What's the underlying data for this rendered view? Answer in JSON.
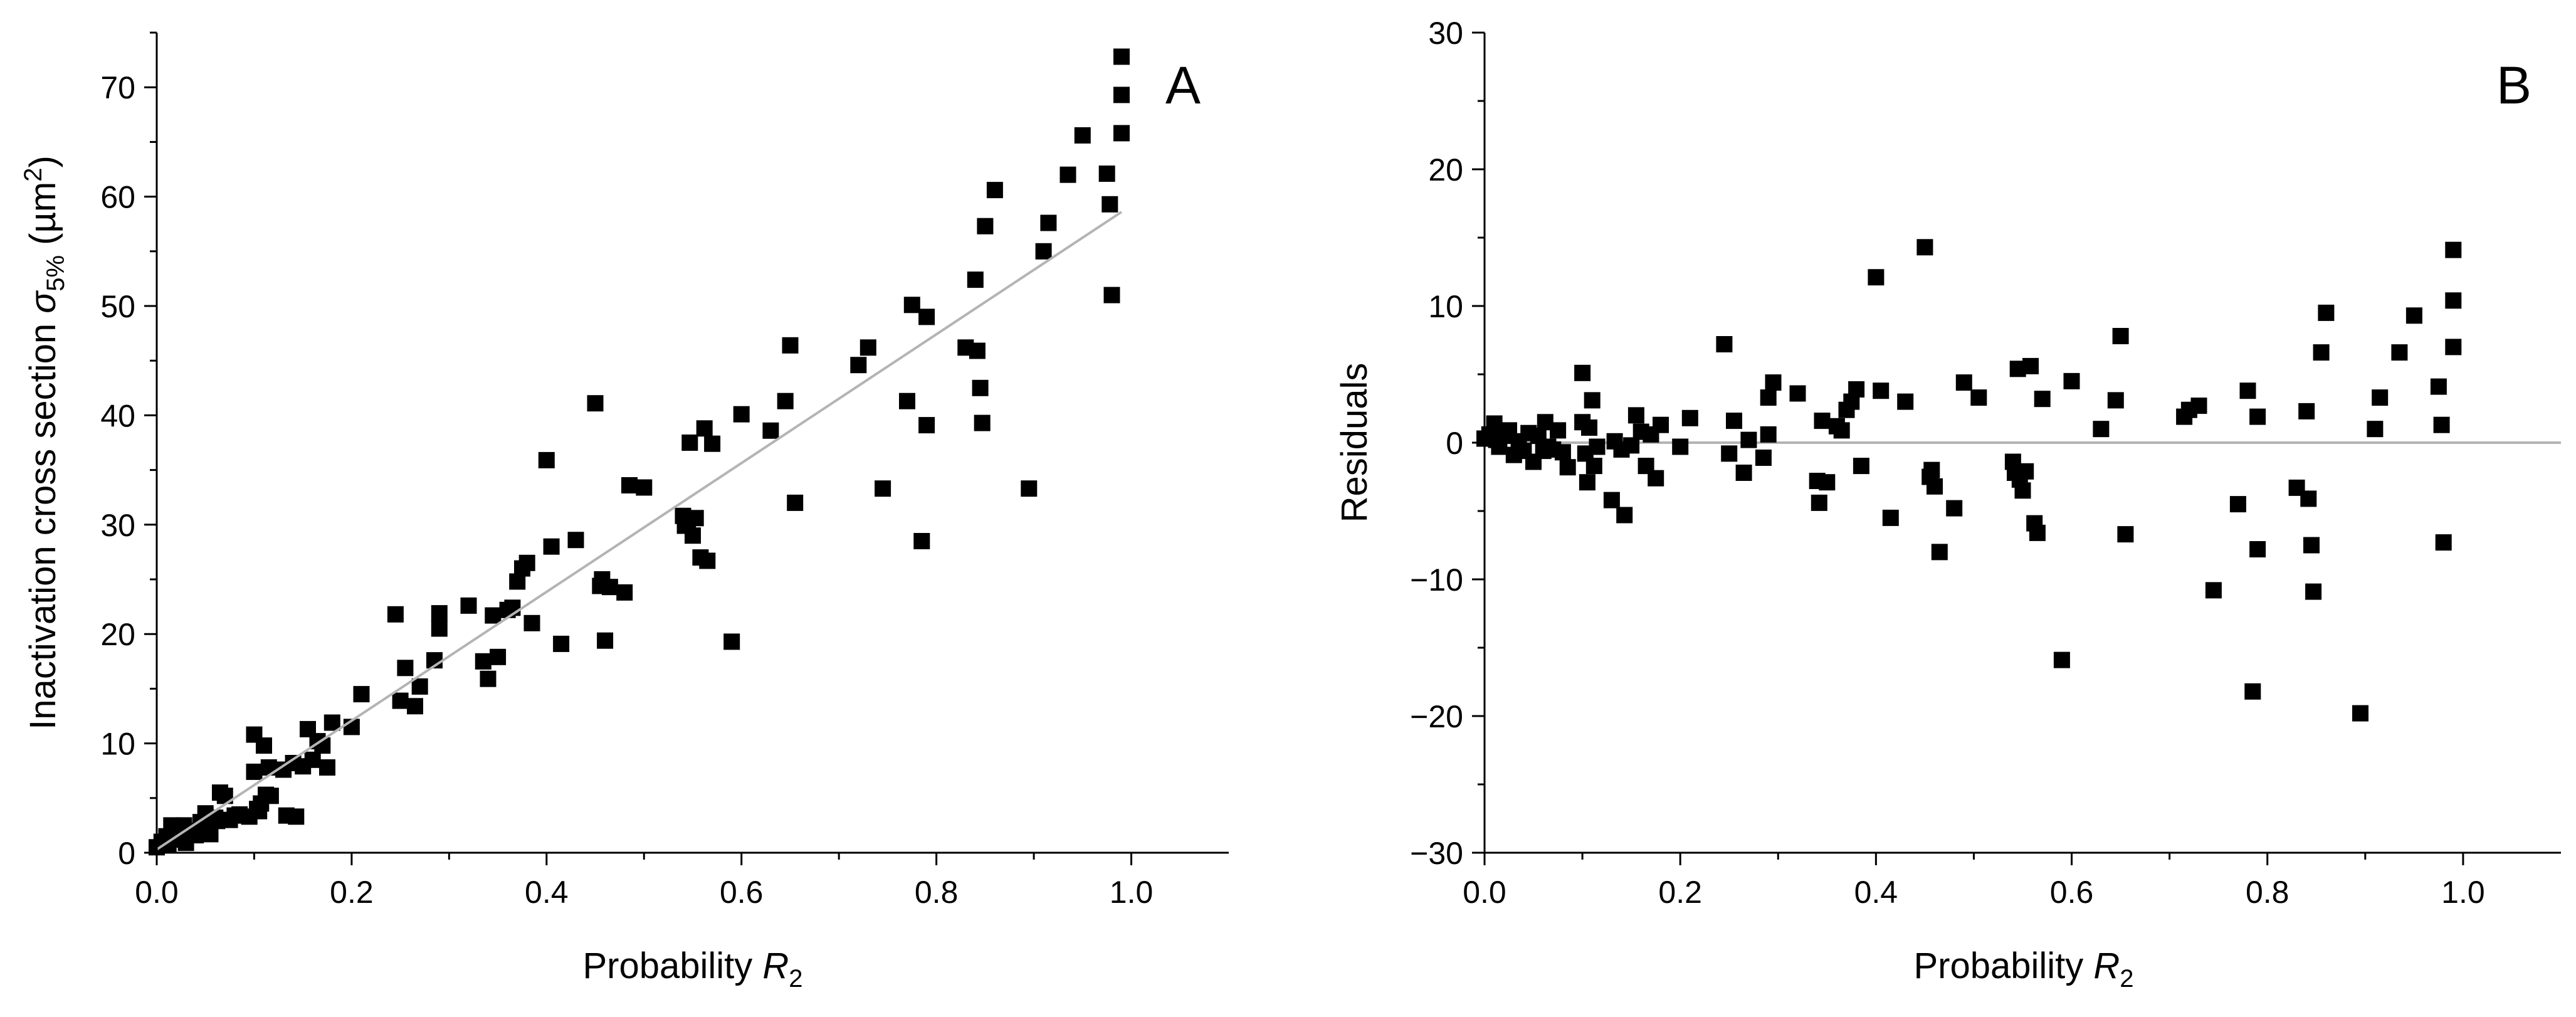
{
  "chart_data": [
    {
      "panel": "A",
      "type": "scatter",
      "xlabel": "Probability R2",
      "xlabel_parts": {
        "main": "Probability ",
        "var": "R",
        "sub": "2"
      },
      "ylabel": "Inactivation cross section σ5% (µm2)",
      "ylabel_parts": {
        "main": "Inactivation cross section ",
        "sym": "σ",
        "sub": "5%",
        "unit_open": " (µm",
        "sup": "2",
        "unit_close": ")"
      },
      "xlim": [
        0,
        1.1
      ],
      "ylim": [
        0,
        75
      ],
      "x_ticks": [
        0,
        0.2,
        0.4,
        0.6,
        0.8,
        1.0
      ],
      "x_tick_labels": [
        "0.0",
        "0.2",
        "0.4",
        "0.6",
        "0.8",
        "1.0"
      ],
      "y_ticks": [
        0,
        10,
        20,
        30,
        40,
        50,
        60,
        70
      ],
      "y_tick_labels": [
        "0",
        "10",
        "20",
        "30",
        "40",
        "50",
        "60",
        "70"
      ],
      "grid": false,
      "fit_line": {
        "x": [
          0,
          0.99
        ],
        "y": [
          0.3,
          58.6
        ]
      },
      "series": [
        {
          "points": [
            [
              0.0,
              0.5
            ],
            [
              0.005,
              1.0
            ],
            [
              0.01,
              1.5
            ],
            [
              0.012,
              0.8
            ],
            [
              0.015,
              2.5
            ],
            [
              0.02,
              1.2
            ],
            [
              0.025,
              1.8
            ],
            [
              0.028,
              2.5
            ],
            [
              0.03,
              0.9
            ],
            [
              0.035,
              2.0
            ],
            [
              0.04,
              1.6
            ],
            [
              0.045,
              2.8
            ],
            [
              0.05,
              3.6
            ],
            [
              0.052,
              2.2
            ],
            [
              0.055,
              1.7
            ],
            [
              0.06,
              3.2
            ],
            [
              0.062,
              2.9
            ],
            [
              0.065,
              5.5
            ],
            [
              0.07,
              5.2
            ],
            [
              0.075,
              3.0
            ],
            [
              0.08,
              3.4
            ],
            [
              0.085,
              3.5
            ],
            [
              0.095,
              3.3
            ],
            [
              0.1,
              10.8
            ],
            [
              0.1,
              7.4
            ],
            [
              0.103,
              4.0
            ],
            [
              0.105,
              3.8
            ],
            [
              0.107,
              4.5
            ],
            [
              0.11,
              9.8
            ],
            [
              0.112,
              5.3
            ],
            [
              0.115,
              7.8
            ],
            [
              0.117,
              5.2
            ],
            [
              0.13,
              7.6
            ],
            [
              0.133,
              3.4
            ],
            [
              0.14,
              8.2
            ],
            [
              0.143,
              3.3
            ],
            [
              0.15,
              7.9
            ],
            [
              0.155,
              11.3
            ],
            [
              0.16,
              8.5
            ],
            [
              0.165,
              10.2
            ],
            [
              0.17,
              9.8
            ],
            [
              0.175,
              7.8
            ],
            [
              0.18,
              11.9
            ],
            [
              0.2,
              11.5
            ],
            [
              0.21,
              14.5
            ],
            [
              0.245,
              21.8
            ],
            [
              0.25,
              13.9
            ],
            [
              0.255,
              16.9
            ],
            [
              0.265,
              13.4
            ],
            [
              0.27,
              15.2
            ],
            [
              0.285,
              17.6
            ],
            [
              0.29,
              21.9
            ],
            [
              0.29,
              20.5
            ],
            [
              0.32,
              22.6
            ],
            [
              0.335,
              17.5
            ],
            [
              0.34,
              15.9
            ],
            [
              0.345,
              21.7
            ],
            [
              0.35,
              17.9
            ],
            [
              0.36,
              22.2
            ],
            [
              0.365,
              22.4
            ],
            [
              0.37,
              24.8
            ],
            [
              0.375,
              26.0
            ],
            [
              0.38,
              26.5
            ],
            [
              0.385,
              21.0
            ],
            [
              0.4,
              35.9
            ],
            [
              0.405,
              28.0
            ],
            [
              0.415,
              19.1
            ],
            [
              0.43,
              28.6
            ],
            [
              0.45,
              41.1
            ],
            [
              0.455,
              24.4
            ],
            [
              0.457,
              25.0
            ],
            [
              0.46,
              19.4
            ],
            [
              0.465,
              24.3
            ],
            [
              0.48,
              23.8
            ],
            [
              0.485,
              33.6
            ],
            [
              0.5,
              33.4
            ],
            [
              0.54,
              30.8
            ],
            [
              0.542,
              29.9
            ],
            [
              0.545,
              30.4
            ],
            [
              0.547,
              37.5
            ],
            [
              0.55,
              29.0
            ],
            [
              0.553,
              30.6
            ],
            [
              0.558,
              27.0
            ],
            [
              0.562,
              38.8
            ],
            [
              0.565,
              26.7
            ],
            [
              0.57,
              37.4
            ],
            [
              0.59,
              19.3
            ],
            [
              0.6,
              40.1
            ],
            [
              0.63,
              38.6
            ],
            [
              0.645,
              41.3
            ],
            [
              0.65,
              46.4
            ],
            [
              0.655,
              32.0
            ],
            [
              0.72,
              44.6
            ],
            [
              0.73,
              46.2
            ],
            [
              0.745,
              33.3
            ],
            [
              0.77,
              41.3
            ],
            [
              0.775,
              50.1
            ],
            [
              0.785,
              28.5
            ],
            [
              0.79,
              49.0
            ],
            [
              0.79,
              39.1
            ],
            [
              0.83,
              46.2
            ],
            [
              0.84,
              52.4
            ],
            [
              0.842,
              45.9
            ],
            [
              0.845,
              42.5
            ],
            [
              0.847,
              39.3
            ],
            [
              0.85,
              57.3
            ],
            [
              0.86,
              60.6
            ],
            [
              0.895,
              33.3
            ],
            [
              0.91,
              55.0
            ],
            [
              0.915,
              57.6
            ],
            [
              0.935,
              62.0
            ],
            [
              0.95,
              65.6
            ],
            [
              0.975,
              62.1
            ],
            [
              0.978,
              59.3
            ],
            [
              0.98,
              51.0
            ],
            [
              0.99,
              72.8
            ],
            [
              0.99,
              69.3
            ],
            [
              0.99,
              65.8
            ]
          ]
        }
      ]
    },
    {
      "panel": "B",
      "type": "scatter",
      "xlabel": "Probability R2",
      "xlabel_parts": {
        "main": "Probability ",
        "var": "R",
        "sub": "2"
      },
      "ylabel": "Residuals",
      "xlim": [
        0,
        1.1
      ],
      "ylim": [
        -30,
        30
      ],
      "x_ticks": [
        0,
        0.2,
        0.4,
        0.6,
        0.8,
        1.0
      ],
      "x_tick_labels": [
        "0.0",
        "0.2",
        "0.4",
        "0.6",
        "0.8",
        "1.0"
      ],
      "y_ticks": [
        -30,
        -20,
        -10,
        0,
        10,
        20,
        30
      ],
      "y_tick_labels": [
        "−30",
        "−20",
        "−10",
        "0",
        "10",
        "20",
        "30"
      ],
      "grid": false,
      "zero_line": 0,
      "series": [
        {
          "points": [
            [
              0.0,
              0.3
            ],
            [
              0.005,
              0.6
            ],
            [
              0.01,
              1.4
            ],
            [
              0.012,
              0.2
            ],
            [
              0.015,
              -0.3
            ],
            [
              0.02,
              0.5
            ],
            [
              0.025,
              0.9
            ],
            [
              0.03,
              -0.9
            ],
            [
              0.035,
              0.1
            ],
            [
              0.04,
              -0.6
            ],
            [
              0.045,
              0.7
            ],
            [
              0.05,
              -1.4
            ],
            [
              0.055,
              0.5
            ],
            [
              0.06,
              -0.6
            ],
            [
              0.062,
              1.5
            ],
            [
              0.065,
              -0.3
            ],
            [
              0.07,
              -0.5
            ],
            [
              0.075,
              0.9
            ],
            [
              0.08,
              -0.7
            ],
            [
              0.085,
              -1.8
            ],
            [
              0.1,
              5.1
            ],
            [
              0.1,
              1.5
            ],
            [
              0.103,
              -0.8
            ],
            [
              0.105,
              -2.9
            ],
            [
              0.107,
              1.1
            ],
            [
              0.11,
              3.1
            ],
            [
              0.112,
              -1.7
            ],
            [
              0.115,
              -0.3
            ],
            [
              0.13,
              -4.2
            ],
            [
              0.133,
              0.1
            ],
            [
              0.14,
              -0.5
            ],
            [
              0.143,
              -5.3
            ],
            [
              0.15,
              -0.2
            ],
            [
              0.155,
              2.0
            ],
            [
              0.16,
              0.8
            ],
            [
              0.165,
              -1.7
            ],
            [
              0.17,
              0.6
            ],
            [
              0.175,
              -2.6
            ],
            [
              0.18,
              1.3
            ],
            [
              0.2,
              -0.3
            ],
            [
              0.21,
              1.8
            ],
            [
              0.245,
              7.2
            ],
            [
              0.25,
              -0.8
            ],
            [
              0.255,
              1.6
            ],
            [
              0.265,
              -2.2
            ],
            [
              0.27,
              0.2
            ],
            [
              0.285,
              -1.1
            ],
            [
              0.29,
              3.3
            ],
            [
              0.29,
              0.6
            ],
            [
              0.295,
              4.4
            ],
            [
              0.32,
              3.6
            ],
            [
              0.34,
              -2.8
            ],
            [
              0.342,
              -4.4
            ],
            [
              0.345,
              1.6
            ],
            [
              0.35,
              -2.9
            ],
            [
              0.36,
              1.2
            ],
            [
              0.365,
              0.9
            ],
            [
              0.37,
              2.4
            ],
            [
              0.375,
              3.0
            ],
            [
              0.38,
              3.9
            ],
            [
              0.385,
              -1.7
            ],
            [
              0.4,
              12.1
            ],
            [
              0.405,
              3.8
            ],
            [
              0.415,
              -5.5
            ],
            [
              0.43,
              3.0
            ],
            [
              0.45,
              14.3
            ],
            [
              0.455,
              -2.5
            ],
            [
              0.457,
              -2.0
            ],
            [
              0.46,
              -3.2
            ],
            [
              0.465,
              -8.0
            ],
            [
              0.48,
              -4.8
            ],
            [
              0.49,
              4.4
            ],
            [
              0.505,
              3.3
            ],
            [
              0.54,
              -1.4
            ],
            [
              0.542,
              -2.2
            ],
            [
              0.545,
              5.4
            ],
            [
              0.547,
              -2.7
            ],
            [
              0.55,
              -3.5
            ],
            [
              0.553,
              -2.1
            ],
            [
              0.558,
              5.6
            ],
            [
              0.562,
              -5.9
            ],
            [
              0.565,
              -6.6
            ],
            [
              0.57,
              3.2
            ],
            [
              0.59,
              -15.9
            ],
            [
              0.6,
              4.5
            ],
            [
              0.63,
              1.0
            ],
            [
              0.645,
              3.1
            ],
            [
              0.65,
              7.8
            ],
            [
              0.655,
              -6.7
            ],
            [
              0.715,
              1.9
            ],
            [
              0.72,
              2.4
            ],
            [
              0.73,
              2.7
            ],
            [
              0.745,
              -10.8
            ],
            [
              0.77,
              -4.5
            ],
            [
              0.78,
              3.8
            ],
            [
              0.785,
              -18.2
            ],
            [
              0.79,
              -7.8
            ],
            [
              0.79,
              1.9
            ],
            [
              0.83,
              -3.3
            ],
            [
              0.84,
              2.3
            ],
            [
              0.842,
              -4.1
            ],
            [
              0.845,
              -7.5
            ],
            [
              0.847,
              -10.9
            ],
            [
              0.855,
              6.6
            ],
            [
              0.86,
              9.5
            ],
            [
              0.895,
              -19.8
            ],
            [
              0.91,
              1.0
            ],
            [
              0.915,
              3.3
            ],
            [
              0.935,
              6.6
            ],
            [
              0.95,
              9.3
            ],
            [
              0.975,
              4.1
            ],
            [
              0.978,
              1.3
            ],
            [
              0.98,
              -7.3
            ],
            [
              0.99,
              14.1
            ],
            [
              0.99,
              10.4
            ],
            [
              0.99,
              7.0
            ]
          ]
        }
      ]
    }
  ]
}
